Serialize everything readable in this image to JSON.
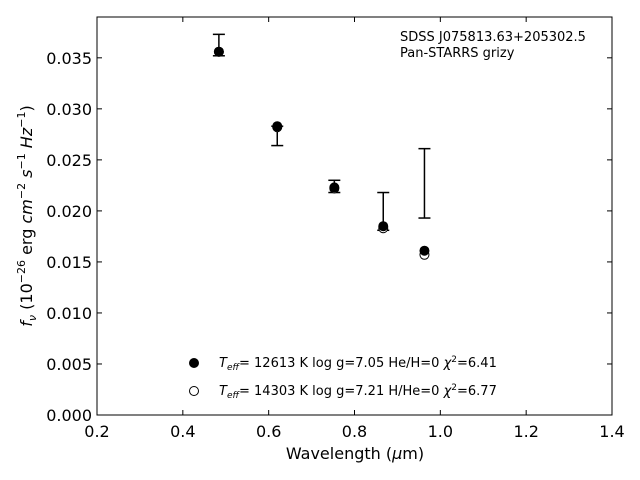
{
  "chart_data": {
    "type": "scatter",
    "title": "",
    "xlabel": "Wavelength (μm)",
    "ylabel": "f_ν (10^-26 erg cm^-2 s^-1 Hz^-1)",
    "xlim": [
      0.2,
      1.4
    ],
    "ylim": [
      0.0,
      0.039
    ],
    "xticks": [
      0.2,
      0.4,
      0.6,
      0.8,
      1.0,
      1.2,
      1.4
    ],
    "xtick_labels": [
      "0.2",
      "0.4",
      "0.6",
      "0.8",
      "1.0",
      "1.2",
      "1.4"
    ],
    "yticks": [
      0.0,
      0.005,
      0.01,
      0.015,
      0.02,
      0.025,
      0.03,
      0.035
    ],
    "ytick_labels": [
      "0.000",
      "0.005",
      "0.010",
      "0.015",
      "0.020",
      "0.025",
      "0.030",
      "0.035"
    ],
    "annotation": [
      "SDSS J075813.63+205302.5",
      "Pan-STARRS grizy"
    ],
    "grid": false,
    "legend_position": "bottom-center",
    "observed": {
      "x": [
        0.484,
        0.62,
        0.753,
        0.867,
        0.963
      ],
      "y": [
        0.0355,
        0.0281,
        0.0224,
        0.0183,
        0.0228
      ],
      "yerr_low": [
        0.0352,
        0.0264,
        0.0218,
        0.0181,
        0.0193
      ],
      "yerr_high": [
        0.0373,
        0.0283,
        0.023,
        0.0218,
        0.0261
      ]
    },
    "series": [
      {
        "name": "T_eff= 12613 K  log g=7.05  He/H=0  χ²=6.41",
        "marker": "filled",
        "x": [
          0.484,
          0.62,
          0.753,
          0.867,
          0.963
        ],
        "y": [
          0.0356,
          0.0283,
          0.0223,
          0.0185,
          0.0161
        ]
      },
      {
        "name": "T_eff= 14303 K  log g=7.21  H/He=0  χ²=6.77",
        "marker": "open",
        "x": [
          0.484,
          0.62,
          0.753,
          0.867,
          0.963
        ],
        "y": [
          0.0356,
          0.0282,
          0.0222,
          0.0183,
          0.0157
        ]
      }
    ]
  },
  "colors": {
    "marker": "#000000",
    "background": "#ffffff"
  }
}
